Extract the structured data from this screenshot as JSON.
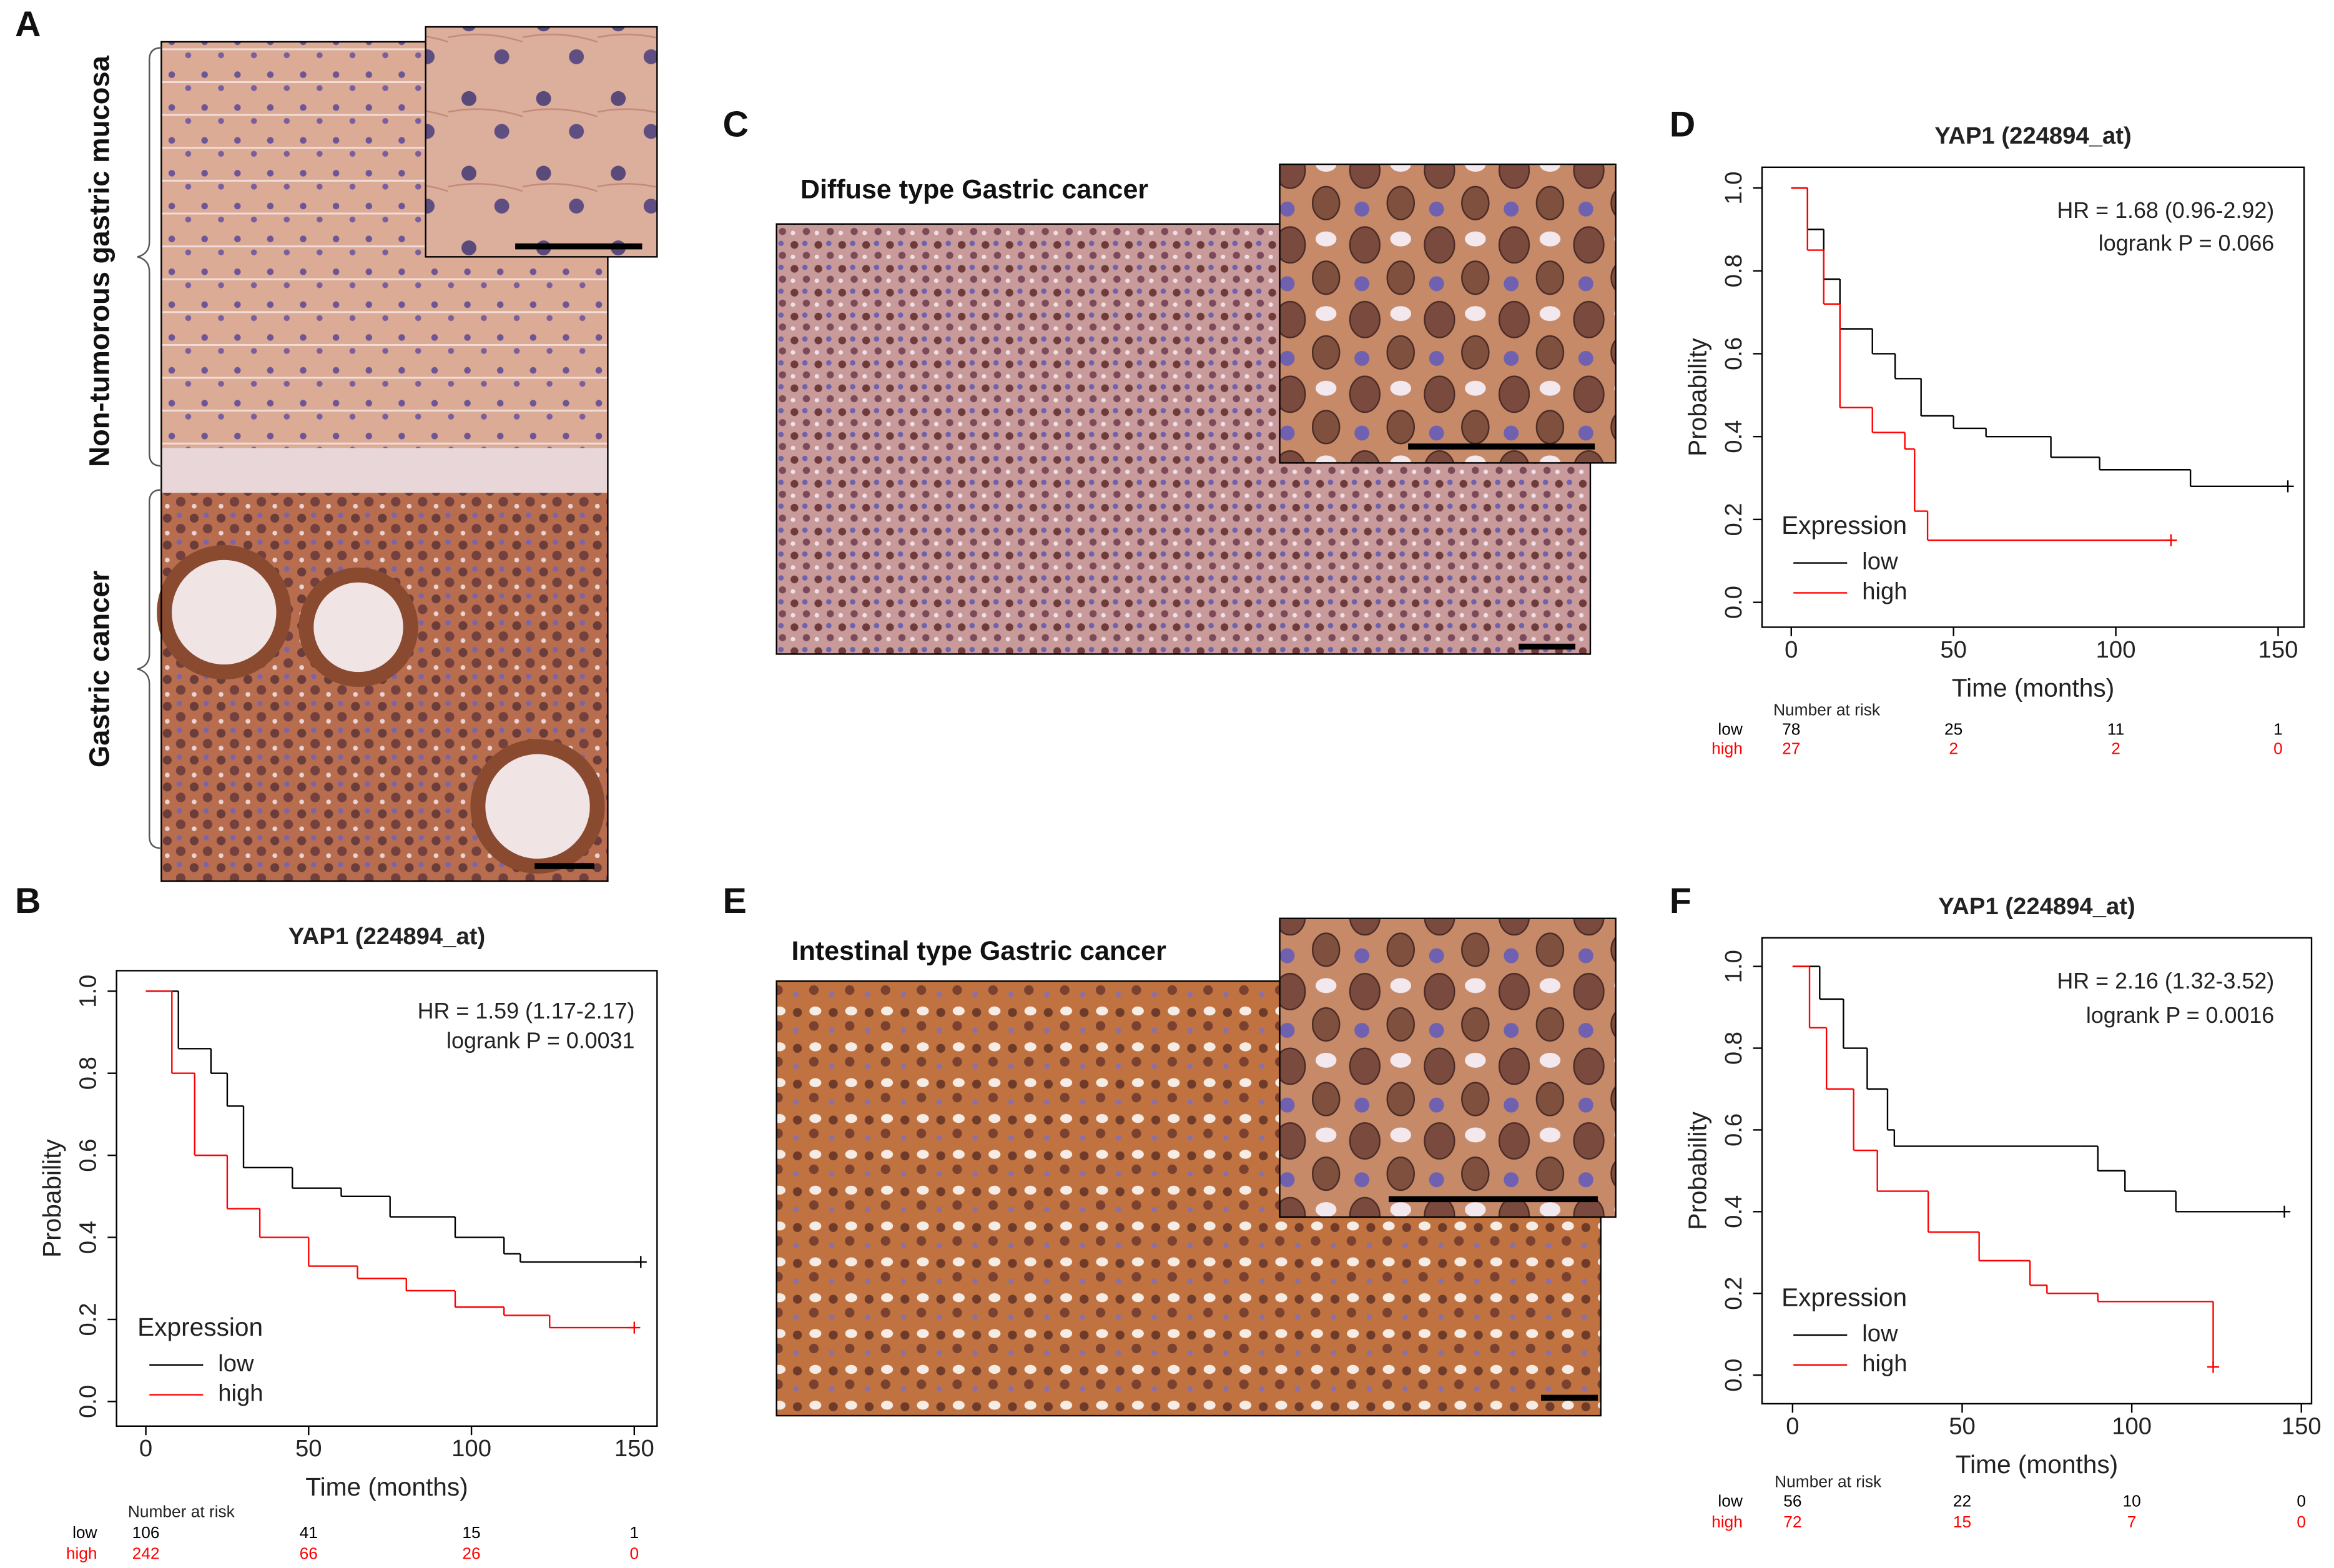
{
  "panel_labels": [
    "A",
    "B",
    "C",
    "D",
    "E",
    "F"
  ],
  "region_labels": [
    "Non-tumorous gastric mucosa",
    "Gastric cancer"
  ],
  "image_captions": [
    "Diffuse type Gastric cancer",
    "Intestinal type Gastric cancer"
  ],
  "chart_data": [
    {
      "type": "km",
      "title": "YAP1 (224894_at)",
      "x_label": "Time (months)",
      "y_label": "Probability",
      "annotations": [
        "HR = 1.59 (1.17-2.17)",
        "logrank P = 0.0031"
      ],
      "legend_title": "Expression",
      "legend": "lower left",
      "risk_title": "Number at risk",
      "xlim": [
        -9,
        157
      ],
      "ylim": [
        -0.06,
        1.05
      ],
      "xticks": [
        0,
        50,
        100,
        150
      ],
      "yticks": [
        {
          "value": 0,
          "label": "0.0"
        },
        {
          "value": 0.2,
          "label": "0.2"
        },
        {
          "value": 0.4,
          "label": "0.4"
        },
        {
          "value": 0.6,
          "label": "0.6"
        },
        {
          "value": 0.8,
          "label": "0.8"
        },
        {
          "value": 1,
          "label": "1.0"
        }
      ],
      "series": [
        {
          "name": "low",
          "color": "#000000",
          "x": [
            0,
            10,
            20,
            25,
            30,
            45,
            60,
            75,
            95,
            110,
            115,
            152
          ],
          "values": [
            1.0,
            0.86,
            0.8,
            0.72,
            0.57,
            0.52,
            0.5,
            0.45,
            0.4,
            0.36,
            0.34,
            0.34
          ],
          "at_risk": [
            106,
            41,
            15,
            1
          ]
        },
        {
          "name": "high",
          "color": "#ff0000",
          "x": [
            0,
            8,
            15,
            25,
            35,
            50,
            65,
            80,
            95,
            110,
            124,
            150
          ],
          "values": [
            1.0,
            0.8,
            0.6,
            0.47,
            0.4,
            0.33,
            0.3,
            0.27,
            0.23,
            0.21,
            0.18,
            0.18
          ],
          "at_risk": [
            242,
            66,
            26,
            0
          ]
        }
      ]
    },
    {
      "type": "km",
      "title": "YAP1 (224894_at)",
      "x_label": "Time (months)",
      "y_label": "Probability",
      "annotations": [
        "HR = 1.68 (0.96-2.92)",
        "logrank P = 0.066"
      ],
      "legend_title": "Expression",
      "legend": "lower left",
      "risk_title": "Number at risk",
      "xlim": [
        -9,
        158
      ],
      "ylim": [
        -0.06,
        1.05
      ],
      "xticks": [
        0,
        50,
        100,
        150
      ],
      "yticks": [
        {
          "value": 0,
          "label": "0.0"
        },
        {
          "value": 0.2,
          "label": "0.2"
        },
        {
          "value": 0.4,
          "label": "0.4"
        },
        {
          "value": 0.6,
          "label": "0.6"
        },
        {
          "value": 0.8,
          "label": "0.8"
        },
        {
          "value": 1,
          "label": "1.0"
        }
      ],
      "series": [
        {
          "name": "low",
          "color": "#000000",
          "x": [
            0,
            5,
            10,
            15,
            25,
            32,
            40,
            50,
            60,
            80,
            95,
            123,
            153
          ],
          "values": [
            1.0,
            0.9,
            0.78,
            0.66,
            0.6,
            0.54,
            0.45,
            0.42,
            0.4,
            0.35,
            0.32,
            0.28,
            0.28
          ],
          "at_risk": [
            78,
            25,
            11,
            1
          ]
        },
        {
          "name": "high",
          "color": "#ff0000",
          "x": [
            0,
            5,
            10,
            15,
            25,
            35,
            38,
            42,
            117
          ],
          "values": [
            1.0,
            0.85,
            0.72,
            0.47,
            0.41,
            0.37,
            0.22,
            0.15,
            0.15
          ],
          "at_risk": [
            27,
            2,
            2,
            0
          ]
        }
      ]
    },
    {
      "type": "km",
      "title": "YAP1 (224894_at)",
      "x_label": "Time (months)",
      "y_label": "Probability",
      "annotations": [
        "HR = 2.16 (1.32-3.52)",
        "logrank P = 0.0016"
      ],
      "legend_title": "Expression",
      "legend": "lower left",
      "risk_title": "Number at risk",
      "xlim": [
        -9,
        153
      ],
      "ylim": [
        -0.07,
        1.07
      ],
      "xticks": [
        0,
        50,
        100,
        150
      ],
      "yticks": [
        {
          "value": 0,
          "label": "0.0"
        },
        {
          "value": 0.2,
          "label": "0.2"
        },
        {
          "value": 0.4,
          "label": "0.4"
        },
        {
          "value": 0.6,
          "label": "0.6"
        },
        {
          "value": 0.8,
          "label": "0.8"
        },
        {
          "value": 1,
          "label": "1.0"
        }
      ],
      "series": [
        {
          "name": "low",
          "color": "#000000",
          "x": [
            0,
            8,
            15,
            22,
            28,
            30,
            85,
            90,
            98,
            113,
            145
          ],
          "values": [
            1.0,
            0.92,
            0.8,
            0.7,
            0.6,
            0.56,
            0.56,
            0.5,
            0.45,
            0.4,
            0.4
          ],
          "at_risk": [
            56,
            22,
            10,
            0
          ]
        },
        {
          "name": "high",
          "color": "#ff0000",
          "x": [
            0,
            5,
            10,
            18,
            25,
            40,
            55,
            70,
            75,
            90,
            123,
            124
          ],
          "values": [
            1.0,
            0.85,
            0.7,
            0.55,
            0.45,
            0.35,
            0.28,
            0.22,
            0.2,
            0.18,
            0.18,
            0.02
          ],
          "at_risk": [
            72,
            15,
            7,
            0
          ]
        }
      ]
    }
  ]
}
